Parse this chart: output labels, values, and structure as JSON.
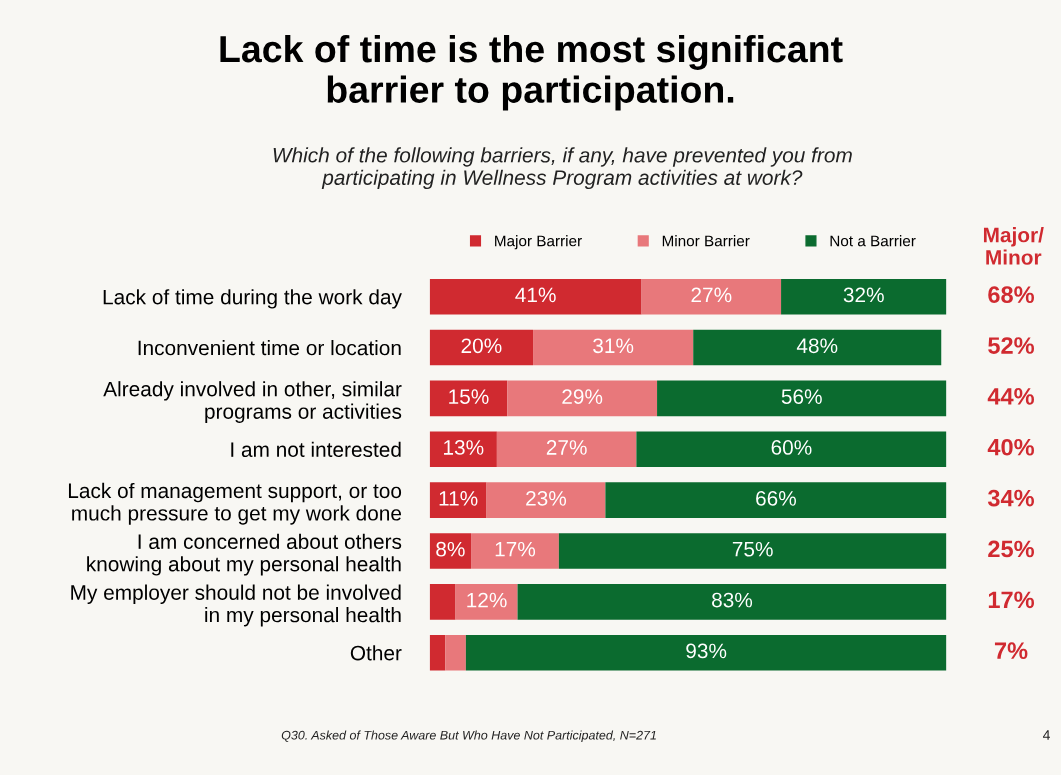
{
  "chart_data": {
    "type": "bar",
    "orientation": "horizontal",
    "stacked": true,
    "title": "Lack of time is the most significant\nbarrier to participation.",
    "subtitle": "Which of the following barriers, if any, have prevented you from\nparticipating in Wellness Program activities at work?",
    "categories": [
      "Lack of time during the work day",
      "Inconvenient time or location",
      "Already involved in other, similar\nprograms or activities",
      "I am not interested",
      "Lack of management support, or too\nmuch pressure to get my work done",
      "I am concerned about others\nknowing about my personal health",
      "My employer should not be involved\nin my personal health",
      "Other"
    ],
    "series": [
      {
        "name": "Major Barrier",
        "color": "#d02a30",
        "values": [
          41,
          20,
          15,
          13,
          11,
          8,
          5,
          3
        ],
        "value_labels": [
          "41%",
          "20%",
          "15%",
          "13%",
          "11%",
          "8%",
          null,
          null
        ]
      },
      {
        "name": "Minor Barrier",
        "color": "#e8787b",
        "values": [
          27,
          31,
          29,
          27,
          23,
          17,
          12,
          4
        ],
        "value_labels": [
          "27%",
          "31%",
          "29%",
          "27%",
          "23%",
          "17%",
          "12%",
          null
        ]
      },
      {
        "name": "Not a Barrier",
        "color": "#0b6b2f",
        "values": [
          32,
          48,
          56,
          60,
          66,
          75,
          83,
          93
        ],
        "value_labels": [
          "32%",
          "48%",
          "56%",
          "60%",
          "66%",
          "75%",
          "83%",
          "93%"
        ]
      }
    ],
    "legend": "top",
    "grid": false,
    "tick_labels": "y",
    "annotations": [
      "Major/\nMinor",
      "Q30. Asked of Those Aware But Who Have Not Participated, N=271",
      "4",
      "68%",
      "52%",
      "44%",
      "40%",
      "34%",
      "25%",
      "17%",
      "7%"
    ]
  }
}
